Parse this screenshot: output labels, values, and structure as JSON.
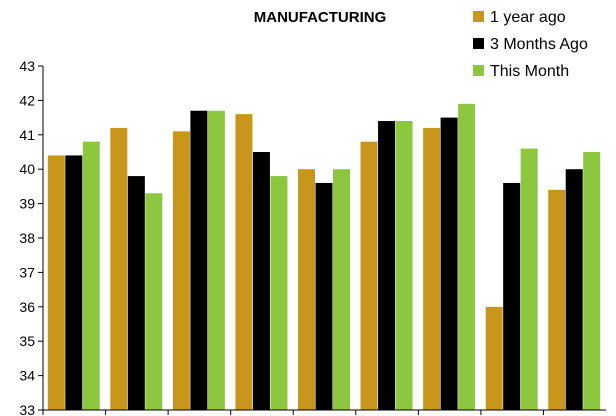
{
  "chart_data": {
    "type": "bar",
    "title": "MANUFACTURING",
    "xlabel": "",
    "ylabel": "",
    "ylim": [
      33,
      43
    ],
    "yticks": [
      "33",
      "34",
      "35",
      "36",
      "37",
      "38",
      "39",
      "40",
      "41",
      "42",
      "43"
    ],
    "grid": false,
    "legend_position": "top-right",
    "categories": [
      "",
      "",
      "",
      "",
      "",
      "",
      "",
      "",
      ""
    ],
    "series": [
      {
        "name": "1 year ago",
        "color": "#C8961A",
        "values": [
          40.4,
          41.2,
          41.1,
          41.6,
          40.0,
          40.8,
          41.2,
          36.0,
          39.4
        ]
      },
      {
        "name": "3 Months Ago",
        "color": "#000000",
        "values": [
          40.4,
          39.8,
          41.7,
          40.5,
          39.6,
          41.4,
          41.5,
          39.6,
          40.0
        ]
      },
      {
        "name": "This Month",
        "color": "#8DC63F",
        "values": [
          40.8,
          39.3,
          41.7,
          39.8,
          40.0,
          41.4,
          41.9,
          40.6,
          40.5
        ]
      }
    ]
  }
}
